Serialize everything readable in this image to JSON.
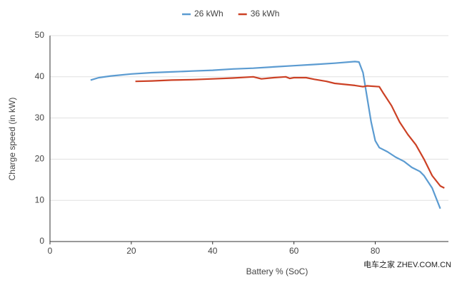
{
  "chart_data": {
    "type": "line",
    "x_label": "Battery % (SoC)",
    "y_label": "Charge speed (in kW)",
    "watermark": "电车之家 ZHEV.COM.CN",
    "xlim": [
      0,
      98
    ],
    "xticks": [
      0,
      20,
      40,
      60,
      80
    ],
    "ylim": [
      0,
      50
    ],
    "yticks": [
      0,
      10,
      20,
      30,
      40,
      50
    ],
    "grid": true,
    "legend": "top",
    "series": [
      {
        "name": "26 kWh",
        "color": "#5b9bd1",
        "x": [
          10,
          12,
          15,
          20,
          25,
          30,
          35,
          40,
          45,
          50,
          55,
          60,
          65,
          70,
          75,
          76,
          77,
          78,
          79,
          80,
          81,
          83,
          85,
          87,
          89,
          91,
          92,
          94,
          96
        ],
        "values": [
          39.2,
          39.8,
          40.2,
          40.7,
          41,
          41.2,
          41.4,
          41.6,
          41.9,
          42.1,
          42.4,
          42.7,
          43,
          43.3,
          43.7,
          43.6,
          41,
          35,
          29,
          24.5,
          22.8,
          21.8,
          20.5,
          19.5,
          18,
          17,
          16,
          13,
          8
        ]
      },
      {
        "name": "36 kWh",
        "color": "#cc4125",
        "x": [
          21,
          25,
          30,
          35,
          40,
          45,
          50,
          52,
          55,
          58,
          59,
          60,
          63,
          65,
          68,
          70,
          75,
          77,
          78,
          81,
          82,
          84,
          86,
          88,
          90,
          92,
          94,
          96,
          97
        ],
        "values": [
          38.9,
          39,
          39.2,
          39.3,
          39.5,
          39.7,
          40,
          39.5,
          39.8,
          40,
          39.6,
          39.8,
          39.8,
          39.4,
          38.9,
          38.4,
          37.9,
          37.6,
          37.8,
          37.6,
          36,
          33,
          29,
          26,
          23.5,
          20,
          16,
          13.5,
          13
        ]
      }
    ]
  }
}
